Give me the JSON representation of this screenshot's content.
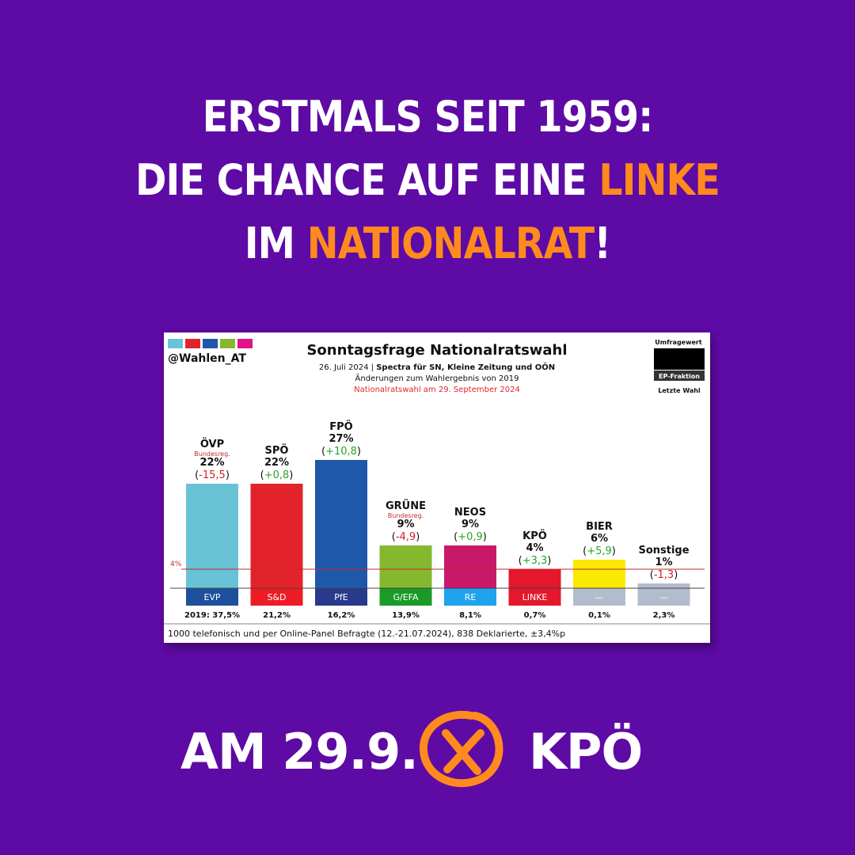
{
  "headline": {
    "line1": "ERSTMALS SEIT 1959:",
    "line2_pre": "DIE CHANCE AUF EINE ",
    "line2_hl": "LINKE",
    "line3_pre": "IM ",
    "line3_hl": "NATIONALRAT",
    "line3_post": "!"
  },
  "footer": {
    "left": "AM 29.9.",
    "right": "KPÖ"
  },
  "colors": {
    "background": "#5e0aa5",
    "accent": "#ff8a1e"
  },
  "chart_data": {
    "type": "bar",
    "handle": "@Wahlen_AT",
    "title": "Sonntagsfrage Nationalratswahl",
    "subtitle_date": "26. Juli 2024",
    "subtitle_source": "Spectra für SN, Kleine Zeitung und OÖN",
    "subtitle_changes": "Änderungen zum Wahlergebnis von 2019",
    "subtitle_election": "Nationalratswahl am 29. September 2024",
    "legend": {
      "poll": "Umfragewert",
      "fraction": "EP-Fraktion",
      "last": "Letzte Wahl"
    },
    "threshold": {
      "value": 4,
      "label": "4%"
    },
    "categories": [
      "ÖVP",
      "SPÖ",
      "FPÖ",
      "GRÜNE",
      "NEOS",
      "KPÖ",
      "BIER",
      "Sonstige"
    ],
    "values": [
      22,
      22,
      27,
      9,
      9,
      4,
      6,
      1
    ],
    "value_labels": [
      "22%",
      "22%",
      "27%",
      "9%",
      "9%",
      "4%",
      "6%",
      "1%"
    ],
    "changes": [
      "(-15,5)",
      "(+0,8)",
      "(+10,8)",
      "(-4,9)",
      "(+0,9)",
      "(+3,3)",
      "(+5,9)",
      "(-1,3)"
    ],
    "change_signs": [
      "neg",
      "pos",
      "pos",
      "neg",
      "pos",
      "pos",
      "pos",
      "neg"
    ],
    "notes": [
      "Bundesreg.",
      "",
      "",
      "Bundesreg.",
      "",
      "",
      "",
      ""
    ],
    "fractions": [
      "EVP",
      "S&D",
      "PfE",
      "G/EFA",
      "RE",
      "LINKE",
      "—",
      "—"
    ],
    "last_election": [
      "2019: 37,5%",
      "21,2%",
      "16,2%",
      "13,9%",
      "8,1%",
      "0,7%",
      "0,1%",
      "2,3%"
    ],
    "bar_colors": [
      "#69c3d6",
      "#e2232c",
      "#1f58a8",
      "#86b82f",
      "#c8186a",
      "#e3182c",
      "#fbe900",
      "#b3bccc"
    ],
    "fraction_colors": [
      "#1e4f9c",
      "#ee1c24",
      "#283a8c",
      "#1a9b28",
      "#1ea3ee",
      "#e3182c",
      "#b3bccc",
      "#b3bccc"
    ],
    "ylim": [
      0,
      27
    ],
    "footnote": "1000 telefonisch und per Online-Panel Befragte (12.-21.07.2024), 838 Deklarierte, ±3,4%p"
  }
}
